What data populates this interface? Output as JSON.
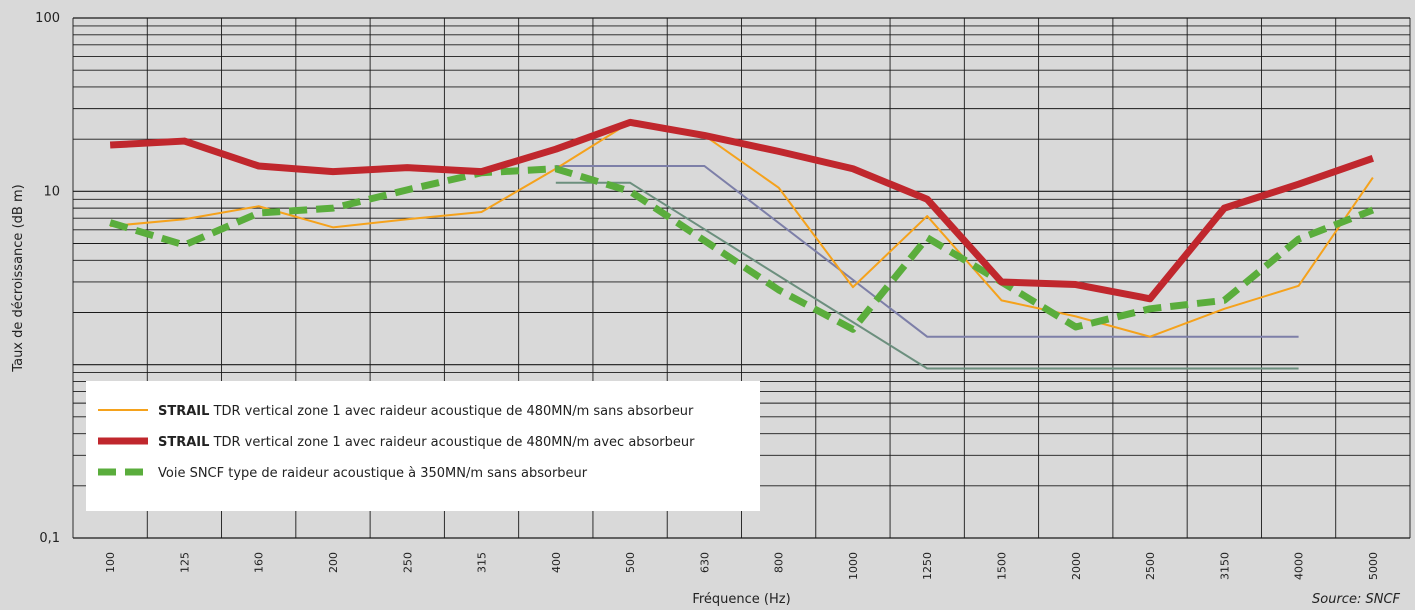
{
  "chart_data": {
    "type": "line",
    "xlabel": "Fréquence (Hz)",
    "ylabel": "Taux de décroissance (dB m)",
    "source": "Source: SNCF",
    "y_scale": "log",
    "ylim": [
      0.1,
      100
    ],
    "y_ticks": [
      {
        "value": 100,
        "label": "100"
      },
      {
        "value": 10,
        "label": "10"
      },
      {
        "value": 0.1,
        "label": "0,1"
      }
    ],
    "categories": [
      "100",
      "125",
      "160",
      "200",
      "250",
      "315",
      "400",
      "500",
      "630",
      "800",
      "1000",
      "1250",
      "1500",
      "2000",
      "2500",
      "3150",
      "4000",
      "5000"
    ],
    "grid": true,
    "legend_position": "bottom-left",
    "series": [
      {
        "legend_bold": "STRAIL",
        "legend_rest": " TDR vertical zone 1 avec raideur acoustique de 480MN/m sans absorbeur",
        "color": "#f5a21c",
        "style": "thin",
        "values": [
          6.3,
          6.9,
          8.2,
          6.2,
          6.9,
          7.6,
          13.5,
          25,
          21,
          10.5,
          2.8,
          7.2,
          2.35,
          1.9,
          1.45,
          2.1,
          2.85,
          12
        ]
      },
      {
        "legend_bold": "STRAIL",
        "legend_rest": " TDR vertical zone 1 avec raideur acoustique de 480MN/m avec absorbeur",
        "color": "#c0272d",
        "style": "thick",
        "values": [
          18.5,
          19.5,
          14,
          13,
          13.7,
          13,
          17.5,
          25,
          21,
          17,
          13.5,
          9,
          3,
          2.9,
          2.4,
          8,
          11,
          15.5
        ]
      },
      {
        "legend_bold": "",
        "legend_rest": "Voie SNCF type de raideur acoustique à 350MN/m sans absorbeur",
        "color": "#5aad3c",
        "style": "dashed",
        "values": [
          6.6,
          4.9,
          7.5,
          8,
          10.2,
          12.8,
          13.5,
          10,
          5.2,
          2.7,
          1.6,
          5.4,
          3,
          1.65,
          2.1,
          2.35,
          5.3,
          7.8
        ]
      }
    ],
    "reference_lines": [
      {
        "color": "#7d7fa8",
        "points": [
          {
            "x": "400",
            "y": 14
          },
          {
            "x": "630",
            "y": 14
          },
          {
            "x": "1250",
            "y": 1.45
          },
          {
            "x": "4000",
            "y": 1.45
          }
        ]
      },
      {
        "color": "#6c8f7e",
        "points": [
          {
            "x": "400",
            "y": 11.2
          },
          {
            "x": "500",
            "y": 11.2
          },
          {
            "x": "1250",
            "y": 0.95
          },
          {
            "x": "4000",
            "y": 0.95
          }
        ]
      }
    ]
  }
}
